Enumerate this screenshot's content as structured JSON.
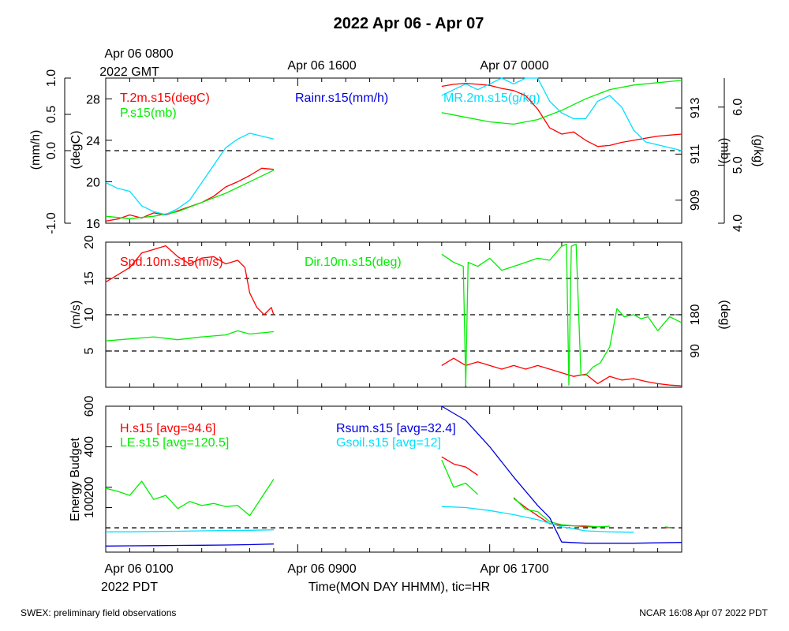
{
  "page": {
    "title": "2022 Apr 06 - Apr 07",
    "footer_left": "SWEX: preliminary field observations",
    "footer_right": "NCAR 16:08 Apr 07 2022 PDT"
  },
  "top_axis": {
    "labels": [
      "Apr 06 0800",
      "Apr 06 1600",
      "Apr 07 0000"
    ],
    "sub_label": "2022 GMT"
  },
  "bottom_axis": {
    "labels": [
      "Apr 06 0100",
      "Apr 06 0900",
      "Apr 06 1700"
    ],
    "sub_label": "2022 PDT",
    "xlabel": "Time(MON DAY HHMM), tic=HR"
  },
  "colors": {
    "red": "#ff0000",
    "green": "#00ee00",
    "blue": "#0000dd",
    "cyan": "#00e0ff",
    "black": "#000000"
  },
  "chart_data": [
    {
      "type": "line",
      "panel": "top",
      "x_unit": "hours since Apr 06 0100 PDT",
      "xlim": [
        0,
        24
      ],
      "axes": {
        "rain": {
          "ylabel": "(mm/h)",
          "ticks": [
            "-1.0",
            "0.0",
            "0.5",
            "1.0"
          ],
          "ylim": [
            -1,
            1
          ]
        },
        "temp": {
          "ylabel": "(degC)",
          "ticks": [
            "16",
            "20",
            "24",
            "28"
          ],
          "ylim": [
            16,
            30
          ]
        },
        "pres": {
          "ylabel": "(mb)",
          "ticks": [
            "909",
            "911",
            "913"
          ],
          "ylim": [
            908,
            914.3
          ]
        },
        "mr": {
          "ylabel": "(g/kg)",
          "ticks": [
            "4.0",
            "5.0",
            "6.0"
          ],
          "ylim": [
            4.0,
            6.5
          ]
        }
      },
      "zero_line": 0.0,
      "series": [
        {
          "name": "T.2m.s15(degC)",
          "color": "red",
          "axis": "temp",
          "x": [
            0,
            0.5,
            1,
            1.5,
            2,
            2.5,
            3,
            3.5,
            4,
            4.5,
            5,
            5.5,
            6,
            6.5,
            7,
            14,
            14.5,
            15,
            15.5,
            16,
            16.5,
            17,
            17.5,
            18,
            18.5,
            19,
            19.5,
            20,
            20.5,
            21,
            21.5,
            22,
            22.5,
            23,
            23.5,
            24
          ],
          "y": [
            16.2,
            16.4,
            16.8,
            16.5,
            17.0,
            16.8,
            17.2,
            17.6,
            18.0,
            18.6,
            19.5,
            20.0,
            20.6,
            21.3,
            21.2,
            29.2,
            29.4,
            29.5,
            29.4,
            29.3,
            29.0,
            28.8,
            28.3,
            27.0,
            25.2,
            24.6,
            24.8,
            24.0,
            23.4,
            23.5,
            23.8,
            24.0,
            24.2,
            24.4,
            24.5,
            24.6
          ]
        },
        {
          "name": "P.s15(mb)",
          "color": "green",
          "axis": "pres",
          "x": [
            0,
            1,
            2,
            3,
            4,
            5,
            6,
            7,
            14,
            15,
            16,
            17,
            18,
            19,
            20,
            21,
            22,
            23,
            24
          ],
          "y": [
            908.3,
            908.2,
            908.3,
            908.5,
            908.9,
            909.3,
            909.8,
            910.3,
            912.8,
            912.6,
            912.4,
            912.3,
            912.5,
            912.9,
            913.4,
            913.8,
            914.0,
            914.1,
            914.2
          ]
        },
        {
          "name": "MR.2m.s15(g/kg)",
          "color": "cyan",
          "axis": "mr",
          "x": [
            0,
            0.5,
            1,
            1.5,
            2,
            2.5,
            3,
            3.5,
            4,
            4.5,
            5,
            5.5,
            6,
            6.5,
            7,
            14,
            14.5,
            15,
            15.5,
            16,
            16.5,
            17,
            17.5,
            18,
            18.5,
            19,
            19.5,
            20,
            20.5,
            21,
            21.5,
            22,
            22.5,
            23,
            23.5,
            24
          ],
          "y": [
            4.7,
            4.6,
            4.55,
            4.3,
            4.2,
            4.15,
            4.25,
            4.4,
            4.7,
            5.0,
            5.3,
            5.45,
            5.55,
            5.5,
            5.45,
            6.2,
            6.3,
            6.4,
            6.3,
            6.4,
            6.5,
            6.4,
            6.5,
            6.5,
            6.1,
            5.9,
            5.8,
            5.8,
            6.1,
            6.2,
            6.0,
            5.6,
            5.4,
            5.35,
            5.3,
            5.25
          ]
        },
        {
          "name": "Rainr.s15(mm/h)",
          "color": "blue",
          "axis": "rain",
          "x": [
            0,
            7,
            14,
            24
          ],
          "y": [
            0,
            0,
            0,
            0
          ],
          "break_after": [
            1
          ]
        }
      ]
    },
    {
      "type": "line",
      "panel": "middle",
      "x_unit": "hours since Apr 06 0100 PDT",
      "xlim": [
        0,
        24
      ],
      "axes": {
        "speed": {
          "ylabel": "(m/s)",
          "ticks": [
            "5",
            "10",
            "15",
            "20"
          ],
          "ylim": [
            0,
            20
          ]
        },
        "dir": {
          "ylabel": "(deg)",
          "ticks": [
            "90",
            "180"
          ],
          "ylim": [
            0,
            360
          ]
        }
      },
      "ref_lines": [
        5,
        10,
        15
      ],
      "series": [
        {
          "name": "Spd.10m.s15(m/s)",
          "color": "red",
          "axis": "speed",
          "x": [
            0,
            0.5,
            1,
            1.5,
            2,
            2.5,
            3,
            3.5,
            4,
            4.5,
            5,
            5.5,
            5.8,
            6,
            6.3,
            6.6,
            6.9,
            7,
            14,
            14.5,
            15,
            15.5,
            16,
            16.5,
            17,
            17.5,
            18,
            18.5,
            19,
            19.5,
            20,
            20.5,
            21,
            21.5,
            22,
            22.5,
            23,
            23.5,
            24
          ],
          "y": [
            14.5,
            15.5,
            16.5,
            18.5,
            19.0,
            19.5,
            18.0,
            17.0,
            17.8,
            18.0,
            17.0,
            17.5,
            16.5,
            13.0,
            11.0,
            10.0,
            11.0,
            10.0,
            3.0,
            4.0,
            3.0,
            3.5,
            3.0,
            2.5,
            3.0,
            2.5,
            3.0,
            2.5,
            2.0,
            1.5,
            1.8,
            0.5,
            1.5,
            1.0,
            1.2,
            0.8,
            0.5,
            0.3,
            0.2
          ]
        },
        {
          "name": "Dir.10m.s15(deg)",
          "color": "green",
          "axis": "dir",
          "x": [
            0,
            1,
            2,
            3,
            4,
            5,
            5.5,
            6,
            6.5,
            7,
            14,
            14.5,
            14.9,
            15,
            15.1,
            15.5,
            16,
            16.5,
            17,
            17.5,
            18,
            18.5,
            19,
            19.2,
            19.3,
            19.4,
            19.6,
            19.8,
            20,
            20.3,
            20.6,
            21,
            21.3,
            21.6,
            22,
            22.3,
            22.6,
            23,
            23.5,
            24
          ],
          "y": [
            115,
            120,
            125,
            118,
            125,
            130,
            140,
            132,
            135,
            138,
            330,
            310,
            300,
            5,
            310,
            300,
            320,
            290,
            300,
            310,
            320,
            315,
            350,
            355,
            5,
            350,
            355,
            30,
            30,
            50,
            60,
            100,
            195,
            175,
            180,
            170,
            175,
            140,
            175,
            160
          ]
        }
      ]
    },
    {
      "type": "line",
      "panel": "bottom",
      "x_unit": "hours since Apr 06 0100 PDT",
      "xlim": [
        0,
        24
      ],
      "ylabel": "Energy Budget",
      "ticks": [
        "100",
        "200",
        "400",
        "600"
      ],
      "ylim": [
        -120,
        600
      ],
      "zero_line": 0,
      "series": [
        {
          "name": "H.s15",
          "avg_label": "[avg=94.6]",
          "color": "red",
          "segments": [
            {
              "x": [
                14,
                14.5,
                15,
                15.5
              ],
              "y": [
                350,
                315,
                300,
                260
              ]
            },
            {
              "x": [
                17,
                17.5,
                18,
                18.5,
                19,
                19.5,
                20,
                20.5
              ],
              "y": [
                145,
                100,
                60,
                20,
                12,
                10,
                6,
                4
              ]
            },
            {
              "x": [
                23.3,
                23.6
              ],
              "y": [
                0,
                2
              ]
            }
          ]
        },
        {
          "name": "LE.s15",
          "avg_label": "[avg=120.5]",
          "color": "green",
          "segments": [
            {
              "x": [
                0,
                0.5,
                1,
                1.5,
                2,
                2.5,
                3,
                3.5,
                4,
                4.5,
                5,
                5.5,
                6,
                6.5,
                7
              ],
              "y": [
                195,
                180,
                160,
                230,
                140,
                160,
                95,
                130,
                110,
                120,
                105,
                110,
                60,
                150,
                240
              ]
            },
            {
              "x": [
                14,
                14.5,
                15,
                15.5
              ],
              "y": [
                335,
                200,
                220,
                165
              ]
            },
            {
              "x": [
                17,
                17.5,
                18,
                18.5,
                19,
                19.5,
                20,
                20.5,
                21
              ],
              "y": [
                150,
                90,
                80,
                30,
                15,
                10,
                10,
                5,
                8
              ]
            },
            {
              "x": [
                23.3,
                23.6
              ],
              "y": [
                5,
                0
              ]
            }
          ]
        },
        {
          "name": "Rsum.s15",
          "avg_label": "[avg=32.4]",
          "color": "blue",
          "segments": [
            {
              "x": [
                0,
                1,
                2,
                3,
                4,
                5,
                6,
                7
              ],
              "y": [
                -90,
                -89,
                -88,
                -87,
                -86,
                -85,
                -83,
                -80
              ]
            },
            {
              "x": [
                14,
                15,
                16,
                17,
                18,
                18.5,
                19,
                20,
                21,
                22,
                23,
                24
              ],
              "y": [
                600,
                530,
                400,
                250,
                110,
                50,
                -70,
                -76,
                -76,
                -76,
                -74,
                -72
              ]
            }
          ]
        },
        {
          "name": "Gsoil.s15",
          "avg_label": "[avg=12]",
          "color": "cyan",
          "segments": [
            {
              "x": [
                0,
                1,
                2,
                3,
                4,
                5,
                6,
                7
              ],
              "y": [
                -20,
                -20,
                -18,
                -17,
                -15,
                -13,
                -12,
                -10
              ]
            },
            {
              "x": [
                14,
                15,
                16,
                17,
                18,
                19,
                20,
                21,
                22
              ],
              "y": [
                105,
                100,
                85,
                65,
                40,
                5,
                -15,
                -20,
                -22
              ]
            }
          ]
        }
      ]
    }
  ]
}
